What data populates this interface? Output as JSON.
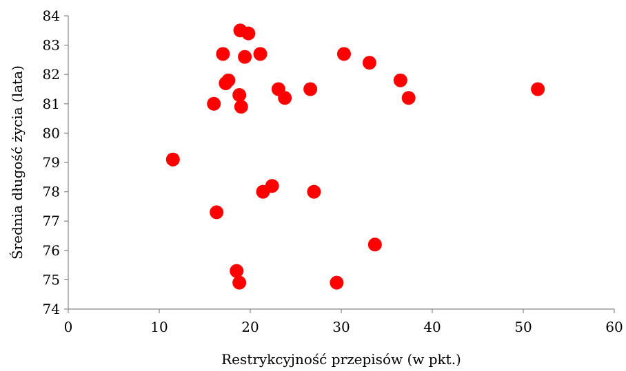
{
  "chart_data": {
    "type": "scatter",
    "xlabel": "Restrykcyjność przepisów (w pkt.)",
    "ylabel": "Średnia długość życia (lata)",
    "xlim": [
      0,
      60
    ],
    "ylim": [
      74,
      84
    ],
    "xticks": [
      0,
      10,
      20,
      30,
      40,
      50,
      60
    ],
    "yticks": [
      74,
      75,
      76,
      77,
      78,
      79,
      80,
      81,
      82,
      83,
      84
    ],
    "grid": false,
    "legend": "none",
    "marker_color": "#ff0000",
    "points": [
      {
        "x": 18.9,
        "y": 83.5
      },
      {
        "x": 19.8,
        "y": 83.4
      },
      {
        "x": 17.0,
        "y": 82.7
      },
      {
        "x": 21.1,
        "y": 82.7
      },
      {
        "x": 30.3,
        "y": 82.7
      },
      {
        "x": 19.4,
        "y": 82.6
      },
      {
        "x": 33.1,
        "y": 82.4
      },
      {
        "x": 17.6,
        "y": 81.8
      },
      {
        "x": 36.5,
        "y": 81.8
      },
      {
        "x": 17.3,
        "y": 81.7
      },
      {
        "x": 23.1,
        "y": 81.5
      },
      {
        "x": 26.6,
        "y": 81.5
      },
      {
        "x": 51.6,
        "y": 81.5
      },
      {
        "x": 18.8,
        "y": 81.3
      },
      {
        "x": 23.8,
        "y": 81.2
      },
      {
        "x": 37.4,
        "y": 81.2
      },
      {
        "x": 16.0,
        "y": 81.0
      },
      {
        "x": 19.0,
        "y": 80.9
      },
      {
        "x": 11.5,
        "y": 79.1
      },
      {
        "x": 22.4,
        "y": 78.2
      },
      {
        "x": 21.4,
        "y": 78.0
      },
      {
        "x": 27.0,
        "y": 78.0
      },
      {
        "x": 16.3,
        "y": 77.3
      },
      {
        "x": 33.7,
        "y": 76.2
      },
      {
        "x": 18.5,
        "y": 75.3
      },
      {
        "x": 18.8,
        "y": 74.9
      },
      {
        "x": 29.5,
        "y": 74.9
      }
    ]
  }
}
